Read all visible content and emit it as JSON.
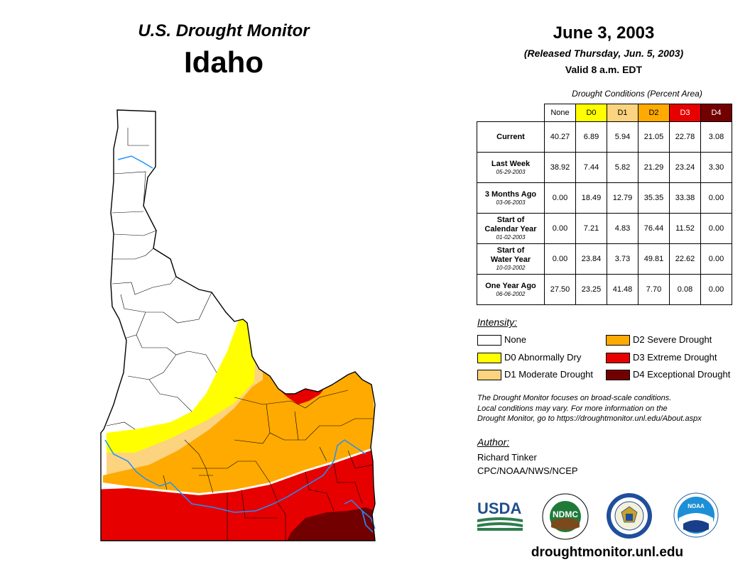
{
  "header": {
    "title": "U.S. Drought Monitor",
    "state": "Idaho",
    "date": "June 3, 2003",
    "released": "(Released Thursday, Jun. 5, 2003)",
    "valid": "Valid 8 a.m. EDT"
  },
  "table": {
    "caption": "Drought Conditions (Percent Area)",
    "columns": [
      "None",
      "D0",
      "D1",
      "D2",
      "D3",
      "D4"
    ],
    "rows": [
      {
        "label": "Current",
        "date": "",
        "values": [
          "40.27",
          "6.89",
          "5.94",
          "21.05",
          "22.78",
          "3.08"
        ]
      },
      {
        "label": "Last Week",
        "date": "05-29-2003",
        "values": [
          "38.92",
          "7.44",
          "5.82",
          "21.29",
          "23.24",
          "3.30"
        ]
      },
      {
        "label": "3 Months Ago",
        "date": "03-06-2003",
        "values": [
          "0.00",
          "18.49",
          "12.79",
          "35.35",
          "33.38",
          "0.00"
        ]
      },
      {
        "label_line1": "Start of",
        "label": "Calendar Year",
        "date": "01-02-2003",
        "values": [
          "0.00",
          "7.21",
          "4.83",
          "76.44",
          "11.52",
          "0.00"
        ]
      },
      {
        "label_line1": "Start of",
        "label": "Water Year",
        "date": "10-03-2002",
        "values": [
          "0.00",
          "23.84",
          "3.73",
          "49.81",
          "22.62",
          "0.00"
        ]
      },
      {
        "label": "One Year Ago",
        "date": "06-06-2002",
        "values": [
          "27.50",
          "23.25",
          "41.48",
          "7.70",
          "0.08",
          "0.00"
        ]
      }
    ]
  },
  "legend": {
    "title": "Intensity:",
    "items": [
      {
        "label": "None",
        "color": "#ffffff"
      },
      {
        "label": "D0 Abnormally Dry",
        "color": "#ffff00"
      },
      {
        "label": "D1 Moderate Drought",
        "color": "#fcd37f"
      },
      {
        "label": "D2 Severe Drought",
        "color": "#ffaa00"
      },
      {
        "label": "D3 Extreme Drought",
        "color": "#e60000"
      },
      {
        "label": "D4 Exceptional Drought",
        "color": "#730000"
      }
    ]
  },
  "note": {
    "line1": "The Drought Monitor focuses on broad-scale conditions.",
    "line2": "Local conditions may vary. For more information on the",
    "line3": "Drought Monitor, go to https://droughtmonitor.unl.edu/About.aspx"
  },
  "author": {
    "title": "Author:",
    "name": "Richard Tinker",
    "org": "CPC/NOAA/NWS/NCEP"
  },
  "logos": {
    "usda": "USDA",
    "ndmc": "NDMC",
    "noaa": "NOAA"
  },
  "footer": {
    "url": "droughtmonitor.unl.edu"
  }
}
